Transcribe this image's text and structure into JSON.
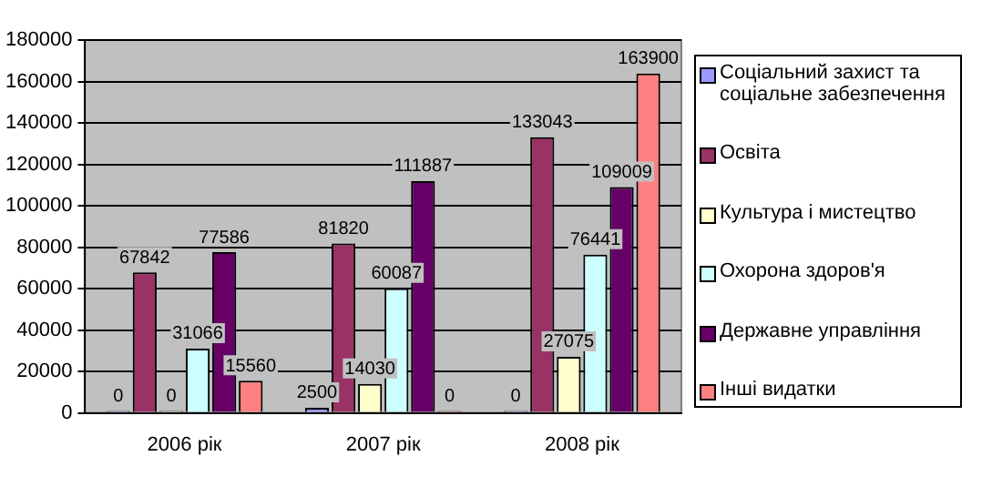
{
  "chart_data": {
    "type": "bar",
    "categories": [
      "2006 рік",
      "2007 рік",
      "2008 рік"
    ],
    "series": [
      {
        "name": "Соціальний захист та соціальне забезпечення",
        "color": "#9999ff",
        "values": [
          0,
          2500,
          0
        ]
      },
      {
        "name": "Освіта",
        "color": "#993366",
        "values": [
          67842,
          81820,
          133043
        ]
      },
      {
        "name": "Культура і мистецтво",
        "color": "#ffffcc",
        "values": [
          0,
          14030,
          27075
        ]
      },
      {
        "name": "Охорона здоров'я",
        "color": "#ccffff",
        "values": [
          31066,
          60087,
          76441
        ]
      },
      {
        "name": "Державне управління",
        "color": "#660066",
        "values": [
          77586,
          111887,
          109009
        ]
      },
      {
        "name": "Інші видатки",
        "color": "#ff8080",
        "values": [
          15560,
          0,
          163900
        ]
      }
    ],
    "ylim": [
      0,
      180000
    ],
    "yticks": [
      0,
      20000,
      40000,
      60000,
      80000,
      100000,
      120000,
      140000,
      160000,
      180000
    ],
    "grid": "y",
    "legend": "right",
    "data_labels": true
  }
}
